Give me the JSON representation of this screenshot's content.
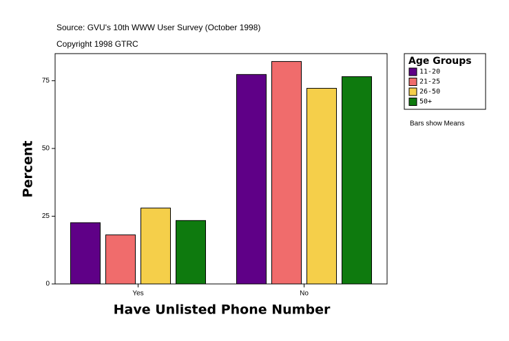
{
  "chart_data": {
    "type": "bar",
    "title": "Source: GVU's 10th WWW User Survey (October 1998)",
    "subtitle": "Copyright 1998 GTRC",
    "note": "Bars show Means",
    "x_label": "Have Unlisted Phone Number",
    "y_label": "Percent",
    "legend_title": "Age Groups",
    "categories": [
      "Yes",
      "No"
    ],
    "series": [
      {
        "name": "11-20",
        "color": "#5f0087",
        "values": [
          22.6,
          77.3
        ]
      },
      {
        "name": "21-25",
        "color": "#f06c6c",
        "values": [
          18.1,
          82.1
        ]
      },
      {
        "name": "26-50",
        "color": "#f5cf4a",
        "values": [
          28.0,
          72.2
        ]
      },
      {
        "name": "50+",
        "color": "#0e7a0e",
        "values": [
          23.4,
          76.5
        ]
      }
    ],
    "ylim": [
      0,
      85
    ],
    "yticks": [
      0,
      25,
      50,
      75
    ],
    "legend": "right"
  }
}
